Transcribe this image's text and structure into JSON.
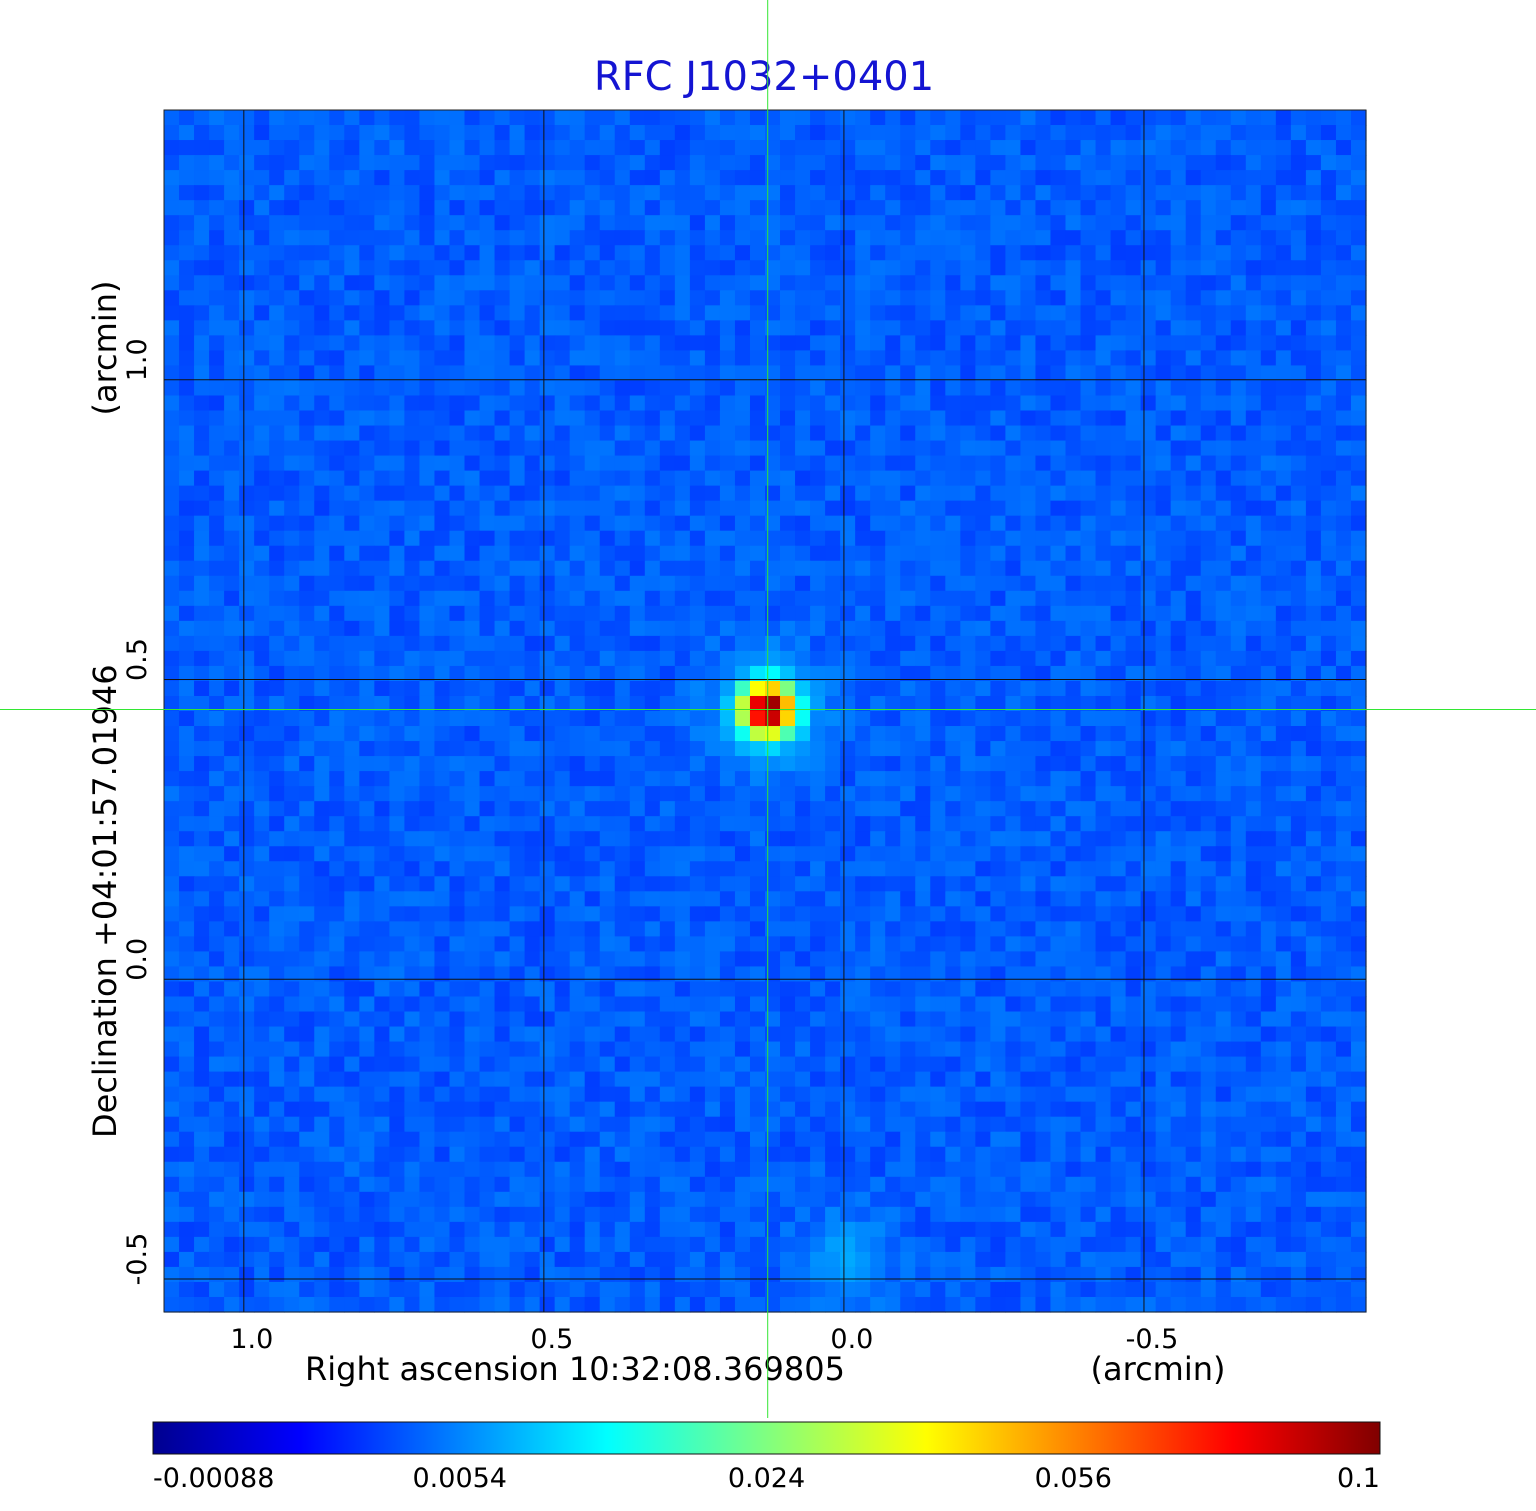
{
  "chart_data": {
    "type": "heatmap",
    "title": "RFC J1032+0401",
    "xlabel": "Right ascension  10:32:08.369805",
    "xunit": "(arcmin)",
    "ylabel": "Declination  +04:01:57.01946",
    "yunit": "(arcmin)",
    "x_ticks": [
      {
        "value": 1.0,
        "label": "1.0"
      },
      {
        "value": 0.5,
        "label": "0.5"
      },
      {
        "value": 0.0,
        "label": "0.0"
      },
      {
        "value": -0.5,
        "label": "-0.5"
      }
    ],
    "y_ticks": [
      {
        "value": 1.0,
        "label": "1.0"
      },
      {
        "value": 0.5,
        "label": "0.5"
      },
      {
        "value": 0.0,
        "label": "0.0"
      },
      {
        "value": -0.5,
        "label": "-0.5"
      }
    ],
    "xlim": [
      1.133,
      -0.87
    ],
    "ylim": [
      -0.555,
      1.45
    ],
    "grid": true,
    "crosshair": {
      "x": 0.127,
      "y": 0.45,
      "color": "#33e633"
    },
    "colorscale": "jet",
    "colorbar": {
      "ticks": [
        "-0.00088",
        "0.0054",
        "0.024",
        "0.056",
        "0.1"
      ],
      "vmin": -0.00088,
      "vmax": 0.1
    },
    "sources": [
      {
        "name": "peak",
        "x": 0.127,
        "y": 0.45,
        "intensity": 0.1
      },
      {
        "name": "diffuse",
        "x": 0.0,
        "y": -0.47,
        "intensity": 0.012
      }
    ],
    "background_level": 0.0008
  }
}
